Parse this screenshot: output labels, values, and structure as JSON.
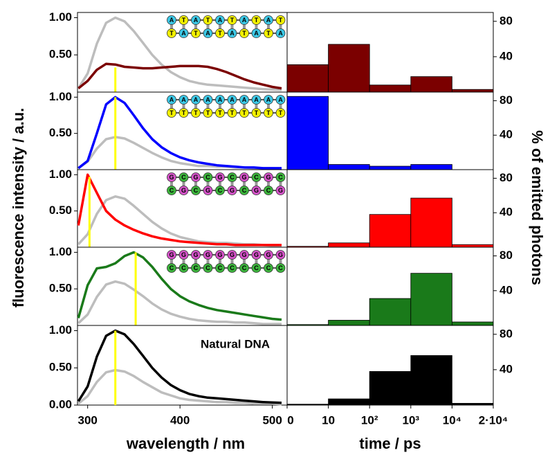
{
  "base_colors": {
    "A": "#3cc8e6",
    "T": "#f2f000",
    "G": "#d452c8",
    "C": "#3cb43c"
  },
  "chart_data": [
    {
      "type": "line",
      "xlim": [
        289,
        516
      ],
      "ylim": [
        0,
        1.07
      ],
      "yticks": [
        {
          "value": 0.5,
          "label": "0.50"
        },
        {
          "value": 1,
          "label": "1.00"
        }
      ],
      "x": [
        290,
        300,
        310,
        320,
        330,
        340,
        350,
        360,
        370,
        380,
        390,
        400,
        410,
        420,
        430,
        440,
        450,
        460,
        470,
        480,
        490,
        500,
        510
      ],
      "series": [
        {
          "color": "#bdbdbd",
          "values": [
            0.05,
            0.25,
            0.65,
            0.93,
            1.0,
            0.95,
            0.82,
            0.66,
            0.5,
            0.37,
            0.27,
            0.2,
            0.15,
            0.12,
            0.1,
            0.09,
            0.08,
            0.07,
            0.06,
            0.05,
            0.04,
            0.035,
            0.03
          ]
        },
        {
          "color": "#7b0000",
          "values": [
            0.05,
            0.15,
            0.3,
            0.38,
            0.37,
            0.34,
            0.33,
            0.32,
            0.32,
            0.33,
            0.34,
            0.35,
            0.35,
            0.35,
            0.34,
            0.31,
            0.27,
            0.22,
            0.17,
            0.13,
            0.1,
            0.07,
            0.05
          ]
        }
      ],
      "marker": {
        "x": 330,
        "y": 0.33,
        "color": "#ffff00"
      },
      "strands": [
        "ATATATATAT",
        "TATATATATA"
      ]
    },
    {
      "type": "line",
      "xlim": [
        289,
        516
      ],
      "ylim": [
        0,
        1.07
      ],
      "yticks": [
        {
          "value": 0.5,
          "label": "0.50"
        },
        {
          "value": 1,
          "label": "1.00"
        }
      ],
      "x": [
        290,
        300,
        310,
        320,
        330,
        340,
        350,
        360,
        370,
        380,
        390,
        400,
        410,
        420,
        430,
        440,
        450,
        460,
        470,
        480,
        490,
        500,
        510
      ],
      "series": [
        {
          "color": "#bdbdbd",
          "values": [
            0.02,
            0.11,
            0.29,
            0.42,
            0.45,
            0.43,
            0.37,
            0.3,
            0.23,
            0.17,
            0.12,
            0.09,
            0.07,
            0.05,
            0.05,
            0.04,
            0.04,
            0.03,
            0.03,
            0.02,
            0.02,
            0.02,
            0.01
          ]
        },
        {
          "color": "#0000ff",
          "values": [
            0.02,
            0.12,
            0.5,
            0.9,
            1.0,
            0.92,
            0.75,
            0.57,
            0.42,
            0.31,
            0.23,
            0.17,
            0.13,
            0.1,
            0.08,
            0.06,
            0.05,
            0.04,
            0.03,
            0.03,
            0.02,
            0.02,
            0.02
          ]
        }
      ],
      "marker": {
        "x": 330,
        "y": 1.0,
        "color": "#ffff00"
      },
      "strands": [
        "AAAAAAAAAA",
        "TTTTTTTTTT"
      ]
    },
    {
      "type": "line",
      "xlim": [
        289,
        516
      ],
      "ylim": [
        0,
        1.07
      ],
      "ylabel": "fluorescence intensity / a.u.",
      "yticks": [
        {
          "value": 0.5,
          "label": "0.50"
        },
        {
          "value": 1,
          "label": "1.00"
        }
      ],
      "x": [
        290,
        300,
        310,
        320,
        330,
        340,
        350,
        360,
        370,
        380,
        390,
        400,
        410,
        420,
        430,
        440,
        450,
        460,
        470,
        480,
        490,
        500,
        510
      ],
      "series": [
        {
          "color": "#bdbdbd",
          "values": [
            0.04,
            0.18,
            0.46,
            0.65,
            0.7,
            0.67,
            0.57,
            0.46,
            0.35,
            0.26,
            0.19,
            0.14,
            0.11,
            0.08,
            0.07,
            0.06,
            0.06,
            0.05,
            0.04,
            0.04,
            0.03,
            0.02,
            0.02
          ]
        },
        {
          "color": "#ff0000",
          "values": [
            0.3,
            1.0,
            0.75,
            0.5,
            0.38,
            0.3,
            0.24,
            0.19,
            0.15,
            0.12,
            0.1,
            0.08,
            0.07,
            0.06,
            0.05,
            0.04,
            0.04,
            0.03,
            0.03,
            0.03,
            0.03,
            0.03,
            0.03
          ]
        }
      ],
      "marker": {
        "x": 302,
        "y": 0.97,
        "color": "#ffff00"
      },
      "strands": [
        "GCGCGCGCGC",
        "CGCGCGCGCG"
      ]
    },
    {
      "type": "line",
      "xlim": [
        289,
        516
      ],
      "ylim": [
        0,
        1.07
      ],
      "yticks": [
        {
          "value": 0.5,
          "label": "0.50"
        },
        {
          "value": 1,
          "label": "1.00"
        }
      ],
      "x": [
        290,
        300,
        310,
        320,
        330,
        340,
        350,
        360,
        370,
        380,
        390,
        400,
        410,
        420,
        430,
        440,
        450,
        460,
        470,
        480,
        490,
        500,
        510
      ],
      "series": [
        {
          "color": "#bdbdbd",
          "values": [
            0.03,
            0.15,
            0.39,
            0.56,
            0.6,
            0.57,
            0.49,
            0.4,
            0.3,
            0.22,
            0.16,
            0.12,
            0.09,
            0.07,
            0.06,
            0.05,
            0.05,
            0.04,
            0.04,
            0.03,
            0.02,
            0.02,
            0.02
          ]
        },
        {
          "color": "#1a7a1a",
          "values": [
            0.1,
            0.55,
            0.78,
            0.8,
            0.85,
            0.95,
            1.0,
            0.93,
            0.8,
            0.64,
            0.5,
            0.4,
            0.33,
            0.28,
            0.24,
            0.21,
            0.19,
            0.17,
            0.15,
            0.13,
            0.11,
            0.09,
            0.08
          ]
        }
      ],
      "marker": {
        "x": 352,
        "y": 1.0,
        "color": "#ffff00"
      },
      "strands": [
        "GGGGGGGGGG",
        "CCCCCCCCCC"
      ]
    },
    {
      "type": "line",
      "xlim": [
        289,
        516
      ],
      "ylim": [
        0,
        1.07
      ],
      "xlabel": "wavelength / nm",
      "xticks": [
        300,
        400,
        500
      ],
      "annotation": "Natural DNA",
      "yticks": [
        {
          "value": 0,
          "label": "0.00"
        },
        {
          "value": 0.5,
          "label": "0.50"
        },
        {
          "value": 1,
          "label": "1.00"
        }
      ],
      "x": [
        290,
        300,
        310,
        320,
        330,
        340,
        350,
        360,
        370,
        380,
        390,
        400,
        410,
        420,
        430,
        440,
        450,
        460,
        470,
        480,
        490,
        500,
        510
      ],
      "series": [
        {
          "color": "#bdbdbd",
          "values": [
            0.02,
            0.12,
            0.31,
            0.44,
            0.47,
            0.45,
            0.39,
            0.31,
            0.24,
            0.17,
            0.13,
            0.09,
            0.07,
            0.06,
            0.05,
            0.04,
            0.04,
            0.03,
            0.03,
            0.02,
            0.02,
            0.02,
            0.01
          ]
        },
        {
          "color": "#000000",
          "values": [
            0.05,
            0.25,
            0.65,
            0.93,
            1.0,
            0.95,
            0.82,
            0.66,
            0.5,
            0.37,
            0.27,
            0.2,
            0.15,
            0.12,
            0.1,
            0.09,
            0.08,
            0.07,
            0.06,
            0.05,
            0.04,
            0.035,
            0.03
          ]
        }
      ],
      "marker": {
        "x": 330,
        "y": 1.0,
        "color": "#ffff00"
      }
    },
    {
      "type": "histogram",
      "ylim": [
        0,
        90
      ],
      "yticks": [
        40,
        80
      ],
      "color": "#7b0000",
      "values": [
        31,
        54,
        8,
        17.5,
        3
      ]
    },
    {
      "type": "histogram",
      "ylim": [
        0,
        90
      ],
      "yticks": [
        40,
        80
      ],
      "color": "#0000ff",
      "values": [
        85,
        6,
        4,
        6,
        0
      ]
    },
    {
      "type": "histogram",
      "ylim": [
        0,
        90
      ],
      "yticks": [
        40,
        80
      ],
      "color": "#ff0000",
      "values": [
        1,
        5,
        38,
        57,
        3
      ],
      "ylabel": "% of emitted photons"
    },
    {
      "type": "histogram",
      "ylim": [
        0,
        90
      ],
      "yticks": [
        40,
        80
      ],
      "color": "#1a7a1a",
      "values": [
        1,
        6,
        31,
        60,
        4
      ]
    },
    {
      "type": "histogram",
      "ylim": [
        0,
        90
      ],
      "yticks": [
        40,
        80
      ],
      "color": "#000000",
      "values": [
        1,
        7,
        38,
        56,
        2
      ],
      "xlabel": "time / ps",
      "bin_labels": [
        "0",
        "10",
        "10²",
        "10³",
        "10⁴",
        "2·10⁴"
      ]
    }
  ]
}
